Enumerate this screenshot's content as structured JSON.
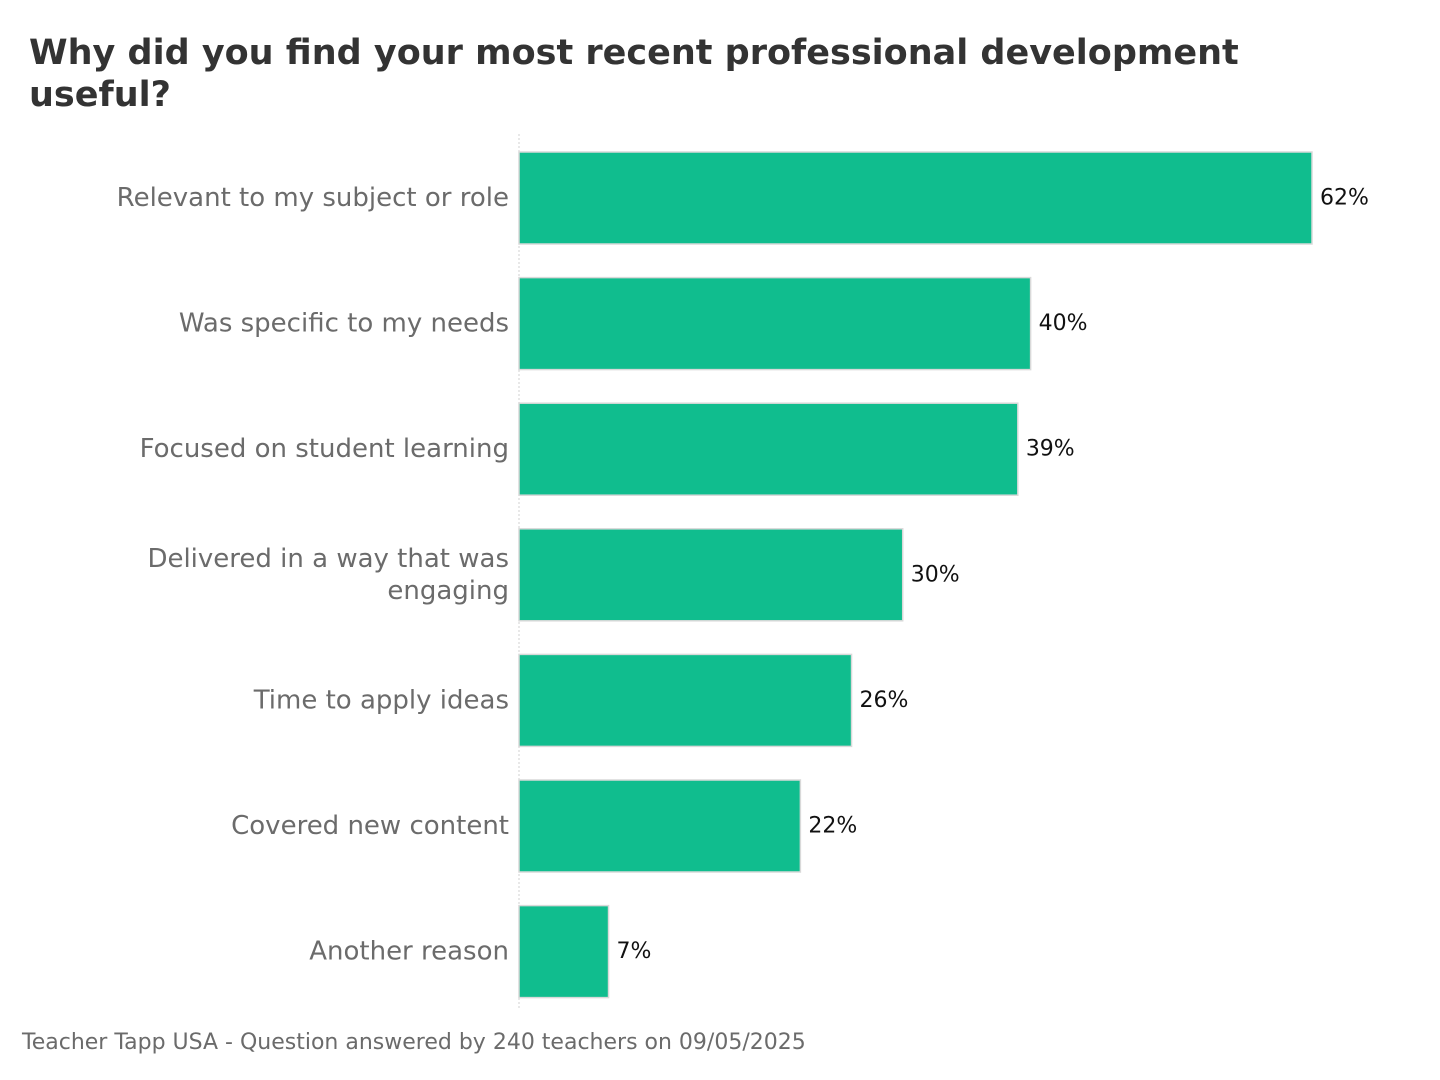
{
  "footer": "Teacher Tapp USA - Question answered by 240 teachers on 09/05/2025",
  "chart_data": {
    "type": "bar",
    "orientation": "horizontal",
    "title": "Why did you find your most recent professional development useful?",
    "xlabel": "",
    "ylabel": "",
    "categories": [
      [
        "Relevant to my subject or role"
      ],
      [
        "Was specific to my needs"
      ],
      [
        "Focused on student learning"
      ],
      [
        "Delivered in a way that was",
        "engaging"
      ],
      [
        "Time to apply ideas"
      ],
      [
        "Covered new content"
      ],
      [
        "Another reason"
      ]
    ],
    "values": [
      62,
      40,
      39,
      30,
      26,
      22,
      7
    ],
    "value_labels": [
      "62%",
      "40%",
      "39%",
      "30%",
      "26%",
      "22%",
      "7%"
    ],
    "xlim": [
      0,
      62
    ],
    "grid": false,
    "legend": "none",
    "bar_color": "#10BD8E",
    "bar_edge_color": "#D9D9D9",
    "category_label_color": "#6B6B6B",
    "value_label_color": "#111111",
    "baseline_color": "#D0D0D0"
  }
}
